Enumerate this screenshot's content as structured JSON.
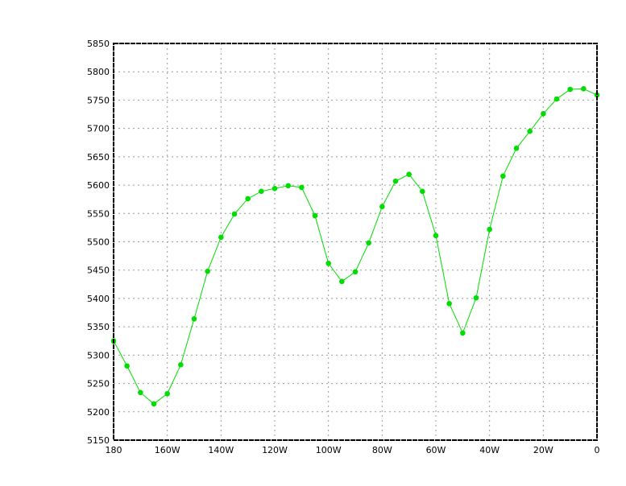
{
  "chart_data": {
    "type": "line",
    "title": "",
    "xlabel": "",
    "ylabel": "",
    "xlim": [
      180,
      0
    ],
    "ylim": [
      5150,
      5850
    ],
    "grid": true,
    "legend": "none",
    "line_color": "#00dd00",
    "marker_color": "#00dd00",
    "x_ticks": [
      {
        "value": 180,
        "label": "180"
      },
      {
        "value": 160,
        "label": "160W"
      },
      {
        "value": 140,
        "label": "140W"
      },
      {
        "value": 120,
        "label": "120W"
      },
      {
        "value": 100,
        "label": "100W"
      },
      {
        "value": 80,
        "label": "80W"
      },
      {
        "value": 60,
        "label": "60W"
      },
      {
        "value": 40,
        "label": "40W"
      },
      {
        "value": 20,
        "label": "20W"
      },
      {
        "value": 0,
        "label": "0"
      }
    ],
    "y_ticks": [
      "5150",
      "5200",
      "5250",
      "5300",
      "5350",
      "5400",
      "5450",
      "5500",
      "5550",
      "5600",
      "5650",
      "5700",
      "5750",
      "5800",
      "5850"
    ],
    "series": [
      {
        "x": [
          180,
          175,
          170,
          165,
          160,
          155,
          150,
          145,
          140,
          135,
          130,
          125,
          120,
          115,
          110,
          105,
          100,
          95,
          90,
          85,
          80,
          75,
          70,
          65,
          60,
          55,
          50,
          45,
          40,
          35,
          30,
          25,
          20,
          15,
          10,
          5,
          0
        ],
        "values": [
          5325,
          5281,
          5234,
          5214,
          5232,
          5283,
          5364,
          5448,
          5508,
          5549,
          5576,
          5589,
          5594,
          5599,
          5596,
          5546,
          5462,
          5430,
          5447,
          5498,
          5562,
          5607,
          5619,
          5589,
          5511,
          5391,
          5339,
          5401,
          5522,
          5616,
          5665,
          5695,
          5726,
          5752,
          5769,
          5770,
          5759
        ]
      }
    ]
  }
}
